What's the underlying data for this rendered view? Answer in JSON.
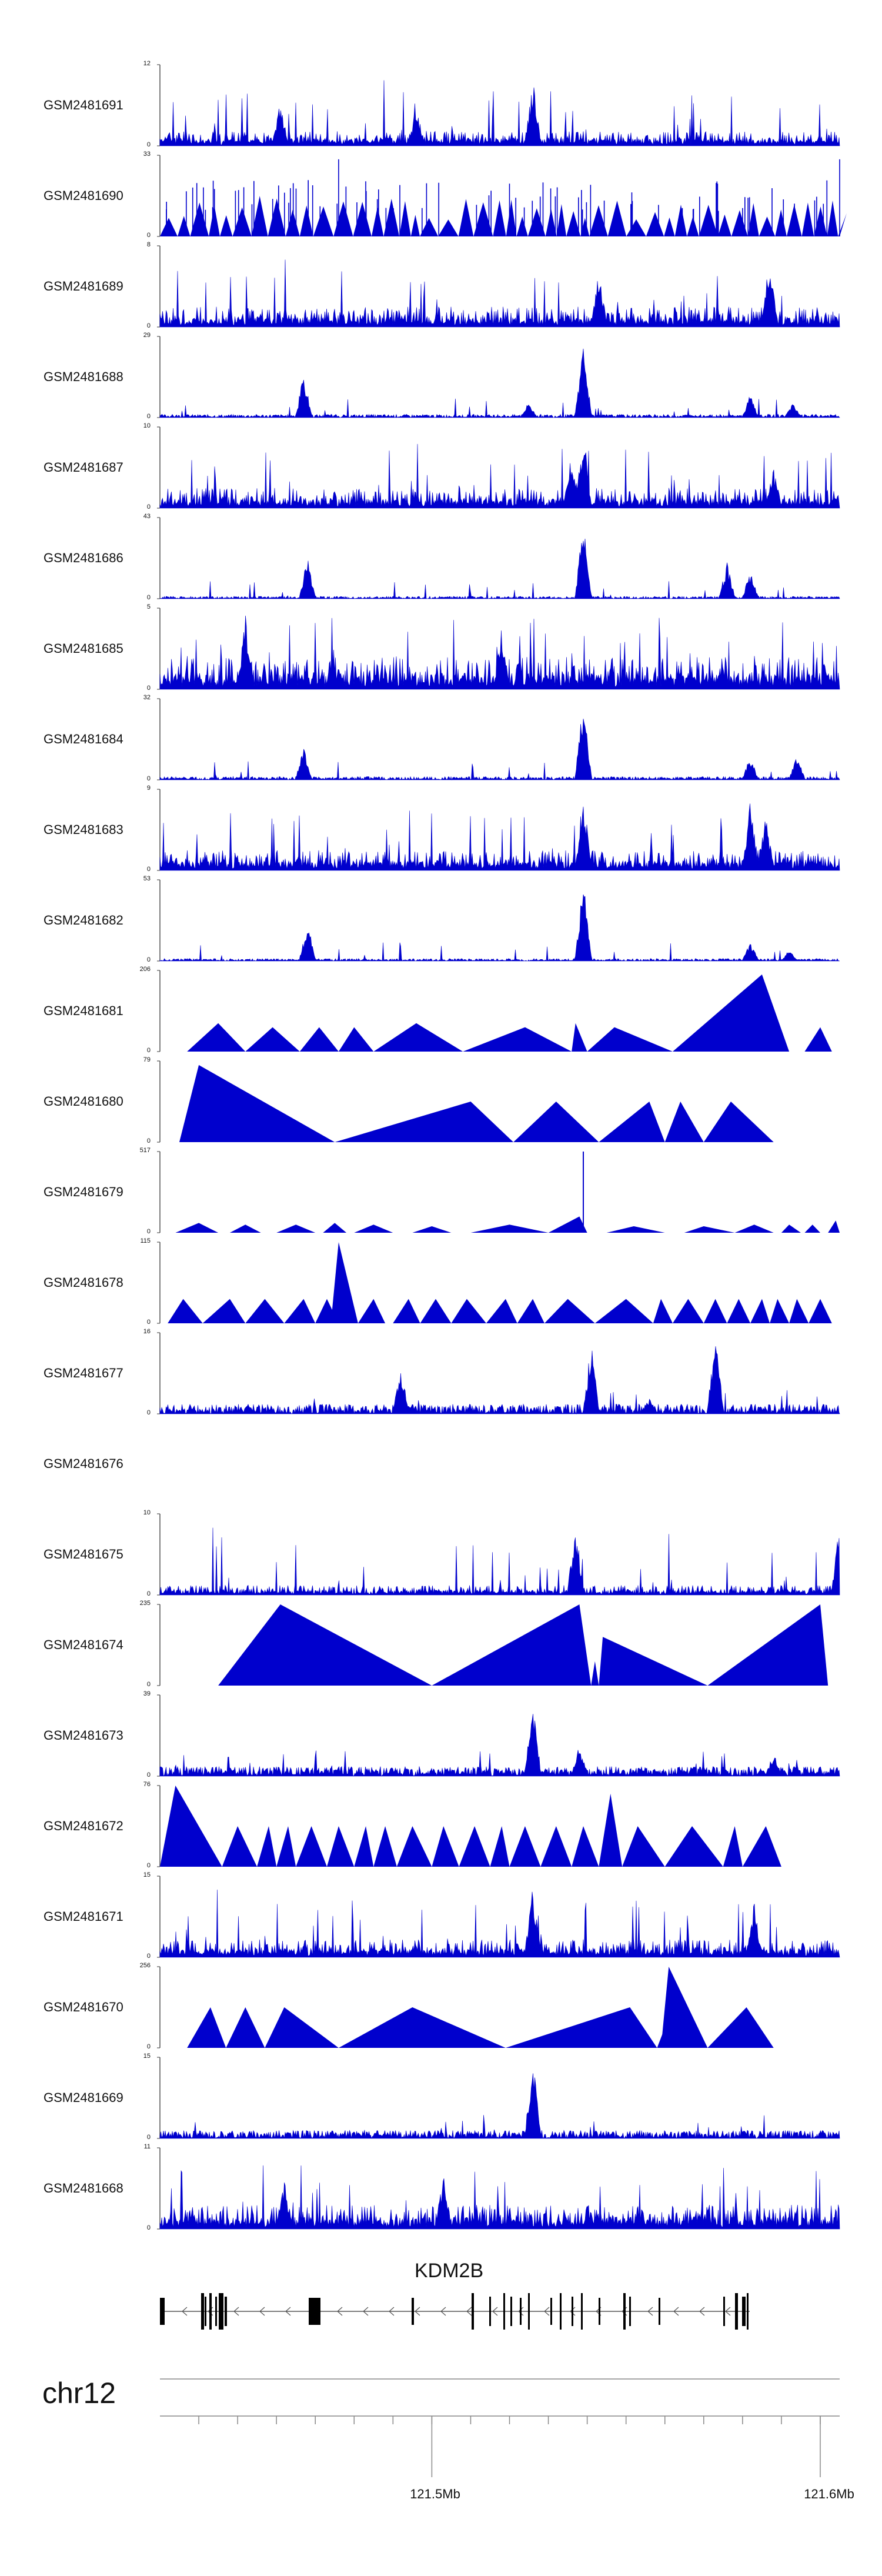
{
  "chart_data": {
    "type": "area",
    "title": "",
    "chromosome": "chr12",
    "gene": "KDM2B",
    "x_axis": {
      "ticks": [
        121.5,
        121.6
      ],
      "tick_labels": [
        "121.5Mb",
        "121.6Mb"
      ],
      "range": [
        121.43,
        121.605
      ]
    },
    "tracks": [
      {
        "name": "GSM2481691",
        "ymax": 12,
        "style": "noise",
        "base": 0.18,
        "peaks": [
          [
            121.461,
            0.55
          ],
          [
            121.496,
            0.5
          ],
          [
            121.526,
            0.85
          ]
        ],
        "seed": 11
      },
      {
        "name": "GSM2481690",
        "ymax": 33,
        "style": "tri-dense",
        "count": 46,
        "peaks": [
          [
            121.476,
            0.95
          ],
          [
            121.52,
            0.65
          ],
          [
            121.605,
            0.95
          ]
        ],
        "seed": 12
      },
      {
        "name": "GSM2481689",
        "ymax": 8,
        "style": "noise",
        "base": 0.25,
        "peaks": [
          [
            121.587,
            1.0
          ],
          [
            121.543,
            0.7
          ]
        ],
        "seed": 13
      },
      {
        "name": "GSM2481688",
        "ymax": 29,
        "style": "sparse",
        "base": 0.04,
        "peaks": [
          [
            121.467,
            0.55
          ],
          [
            121.539,
            0.95
          ],
          [
            121.539,
            0.85
          ],
          [
            121.525,
            0.2
          ],
          [
            121.582,
            0.3
          ],
          [
            121.593,
            0.2
          ]
        ],
        "seed": 14
      },
      {
        "name": "GSM2481687",
        "ymax": 10,
        "style": "noise",
        "base": 0.25,
        "peaks": [
          [
            121.539,
            1.0
          ],
          [
            121.536,
            0.7
          ],
          [
            121.588,
            0.5
          ]
        ],
        "seed": 15
      },
      {
        "name": "GSM2481686",
        "ymax": 43,
        "style": "sparse",
        "base": 0.03,
        "peaks": [
          [
            121.468,
            0.55
          ],
          [
            121.539,
            1.0
          ],
          [
            121.539,
            0.9
          ],
          [
            121.576,
            0.45
          ],
          [
            121.582,
            0.35
          ]
        ],
        "seed": 16
      },
      {
        "name": "GSM2481685",
        "ymax": 5,
        "style": "noise",
        "base": 0.4,
        "peaks": [
          [
            121.452,
            1.0
          ],
          [
            121.518,
            0.8
          ]
        ],
        "seed": 17
      },
      {
        "name": "GSM2481684",
        "ymax": 32,
        "style": "sparse",
        "base": 0.04,
        "peaks": [
          [
            121.467,
            0.4
          ],
          [
            121.539,
            1.0
          ],
          [
            121.539,
            0.8
          ],
          [
            121.582,
            0.3
          ],
          [
            121.594,
            0.3
          ]
        ],
        "seed": 18
      },
      {
        "name": "GSM2481683",
        "ymax": 9,
        "style": "noise",
        "base": 0.25,
        "peaks": [
          [
            121.539,
            1.0
          ],
          [
            121.582,
            0.95
          ],
          [
            121.586,
            0.7
          ]
        ],
        "seed": 19
      },
      {
        "name": "GSM2481682",
        "ymax": 53,
        "style": "sparse",
        "base": 0.03,
        "peaks": [
          [
            121.468,
            0.5
          ],
          [
            121.539,
            1.0
          ],
          [
            121.539,
            0.9
          ],
          [
            121.582,
            0.25
          ],
          [
            121.592,
            0.15
          ]
        ],
        "seed": 20
      },
      {
        "name": "GSM2481681",
        "ymax": 206,
        "style": "tri",
        "tris": [
          [
            121.437,
            121.445,
            121.452,
            0.35
          ],
          [
            121.452,
            121.459,
            121.466,
            0.3
          ],
          [
            121.466,
            121.471,
            121.476,
            0.3
          ],
          [
            121.476,
            121.48,
            121.485,
            0.3
          ],
          [
            121.485,
            121.496,
            121.508,
            0.35
          ],
          [
            121.508,
            121.524,
            121.536,
            0.3
          ],
          [
            121.536,
            121.537,
            121.54,
            0.35
          ],
          [
            121.54,
            121.547,
            121.562,
            0.3
          ],
          [
            121.562,
            121.585,
            121.592,
            0.95
          ],
          [
            121.596,
            121.6,
            121.603,
            0.3
          ]
        ],
        "seed": 21
      },
      {
        "name": "GSM2481680",
        "ymax": 79,
        "style": "tri",
        "tris": [
          [
            121.435,
            121.44,
            121.475,
            0.95
          ],
          [
            121.475,
            121.51,
            121.521,
            0.5
          ],
          [
            121.521,
            121.532,
            121.543,
            0.5
          ],
          [
            121.543,
            121.556,
            121.56,
            0.5
          ],
          [
            121.56,
            121.564,
            121.57,
            0.5
          ],
          [
            121.57,
            121.577,
            121.588,
            0.5
          ]
        ],
        "seed": 22
      },
      {
        "name": "GSM2481679",
        "ymax": 517,
        "style": "tri",
        "tris": [
          [
            121.434,
            121.44,
            121.445,
            0.12
          ],
          [
            121.448,
            121.452,
            121.456,
            0.1
          ],
          [
            121.46,
            121.465,
            121.47,
            0.1
          ],
          [
            121.472,
            121.475,
            121.478,
            0.12
          ],
          [
            121.48,
            121.485,
            121.49,
            0.1
          ],
          [
            121.495,
            121.5,
            121.505,
            0.08
          ],
          [
            121.51,
            121.52,
            121.53,
            0.1
          ],
          [
            121.53,
            121.538,
            121.54,
            0.2
          ],
          [
            121.545,
            121.552,
            121.56,
            0.08
          ],
          [
            121.565,
            121.57,
            121.578,
            0.08
          ],
          [
            121.578,
            121.583,
            121.588,
            0.1
          ],
          [
            121.59,
            121.592,
            121.595,
            0.1
          ],
          [
            121.596,
            121.598,
            121.6,
            0.1
          ],
          [
            121.602,
            121.604,
            121.605,
            0.15
          ]
        ],
        "seed": 23,
        "peaks": [
          [
            121.539,
            1.0
          ]
        ]
      },
      {
        "name": "GSM2481678",
        "ymax": 115,
        "style": "tri",
        "tris": [
          [
            121.432,
            121.436,
            121.441,
            0.3
          ],
          [
            121.441,
            121.448,
            121.452,
            0.3
          ],
          [
            121.452,
            121.457,
            121.462,
            0.3
          ],
          [
            121.462,
            121.467,
            121.47,
            0.3
          ],
          [
            121.47,
            121.473,
            121.476,
            0.3
          ],
          [
            121.474,
            121.476,
            121.481,
            1.0
          ],
          [
            121.481,
            121.485,
            121.488,
            0.3
          ],
          [
            121.49,
            121.494,
            121.497,
            0.3
          ],
          [
            121.497,
            121.501,
            121.505,
            0.3
          ],
          [
            121.505,
            121.509,
            121.514,
            0.3
          ],
          [
            121.514,
            121.519,
            121.522,
            0.3
          ],
          [
            121.522,
            121.526,
            121.529,
            0.3
          ],
          [
            121.529,
            121.535,
            121.542,
            0.3
          ],
          [
            121.542,
            121.55,
            121.557,
            0.3
          ],
          [
            121.557,
            121.559,
            121.562,
            0.3
          ],
          [
            121.562,
            121.566,
            121.57,
            0.3
          ],
          [
            121.57,
            121.573,
            121.576,
            0.3
          ],
          [
            121.576,
            121.579,
            121.582,
            0.3
          ],
          [
            121.582,
            121.585,
            121.587,
            0.3
          ],
          [
            121.587,
            121.589,
            121.592,
            0.3
          ],
          [
            121.592,
            121.594,
            121.597,
            0.3
          ],
          [
            121.597,
            121.6,
            121.603,
            0.3
          ]
        ],
        "seed": 24
      },
      {
        "name": "GSM2481677",
        "ymax": 16,
        "style": "sparse",
        "base": 0.12,
        "peaks": [
          [
            121.492,
            0.65
          ],
          [
            121.541,
            0.9
          ],
          [
            121.573,
            1.0
          ],
          [
            121.556,
            0.2
          ]
        ],
        "seed": 25
      },
      {
        "name": "GSM2481676",
        "ymax": null,
        "style": "empty",
        "seed": 26
      },
      {
        "name": "GSM2481675",
        "ymax": 10,
        "style": "noise",
        "base": 0.12,
        "peaks": [
          [
            121.537,
            0.95
          ],
          [
            121.605,
            1.0
          ]
        ],
        "seed": 27
      },
      {
        "name": "GSM2481674",
        "ymax": 235,
        "style": "tri",
        "tris": [
          [
            121.445,
            121.461,
            121.5,
            1.0
          ],
          [
            121.5,
            121.538,
            121.541,
            1.0
          ],
          [
            121.541,
            121.542,
            121.543,
            0.3
          ],
          [
            121.543,
            121.544,
            121.571,
            0.6
          ],
          [
            121.571,
            121.6,
            121.602,
            1.0
          ]
        ],
        "seed": 28
      },
      {
        "name": "GSM2481673",
        "ymax": 39,
        "style": "sparse",
        "base": 0.12,
        "peaks": [
          [
            121.526,
            1.0
          ],
          [
            121.538,
            0.4
          ],
          [
            121.588,
            0.3
          ]
        ],
        "seed": 29
      },
      {
        "name": "GSM2481672",
        "ymax": 76,
        "style": "tri",
        "tris": [
          [
            121.43,
            121.434,
            121.446,
            1.0
          ],
          [
            121.446,
            121.45,
            121.455,
            0.5
          ],
          [
            121.455,
            121.458,
            121.46,
            0.5
          ],
          [
            121.46,
            121.463,
            121.465,
            0.5
          ],
          [
            121.465,
            121.469,
            121.473,
            0.5
          ],
          [
            121.473,
            121.476,
            121.48,
            0.5
          ],
          [
            121.48,
            121.483,
            121.485,
            0.5
          ],
          [
            121.485,
            121.488,
            121.491,
            0.5
          ],
          [
            121.491,
            121.495,
            121.5,
            0.5
          ],
          [
            121.5,
            121.503,
            121.507,
            0.5
          ],
          [
            121.507,
            121.511,
            121.515,
            0.5
          ],
          [
            121.515,
            121.518,
            121.52,
            0.5
          ],
          [
            121.52,
            121.524,
            121.528,
            0.5
          ],
          [
            121.528,
            121.532,
            121.536,
            0.5
          ],
          [
            121.536,
            121.539,
            121.543,
            0.5
          ],
          [
            121.543,
            121.546,
            121.549,
            0.9
          ],
          [
            121.549,
            121.553,
            121.56,
            0.5
          ],
          [
            121.56,
            121.567,
            121.575,
            0.5
          ],
          [
            121.575,
            121.578,
            121.58,
            0.5
          ],
          [
            121.58,
            121.586,
            121.59,
            0.5
          ]
        ],
        "seed": 30
      },
      {
        "name": "GSM2481671",
        "ymax": 15,
        "style": "noise",
        "base": 0.22,
        "peaks": [
          [
            121.526,
            0.95
          ],
          [
            121.583,
            0.7
          ]
        ],
        "seed": 31
      },
      {
        "name": "GSM2481670",
        "ymax": 256,
        "style": "tri",
        "tris": [
          [
            121.437,
            121.443,
            121.447,
            0.5
          ],
          [
            121.447,
            121.452,
            121.457,
            0.5
          ],
          [
            121.457,
            121.462,
            121.476,
            0.5
          ],
          [
            121.476,
            121.495,
            121.519,
            0.5
          ],
          [
            121.519,
            121.551,
            121.558,
            0.5
          ],
          [
            121.558,
            121.562,
            121.563,
            0.5
          ],
          [
            121.559,
            121.561,
            121.571,
            1.0
          ],
          [
            121.571,
            121.581,
            121.588,
            0.5
          ]
        ],
        "seed": 32
      },
      {
        "name": "GSM2481669",
        "ymax": 15,
        "style": "sparse",
        "base": 0.1,
        "peaks": [
          [
            121.526,
            1.0
          ]
        ],
        "seed": 33
      },
      {
        "name": "GSM2481668",
        "ymax": 11,
        "style": "noise",
        "base": 0.3,
        "peaks": [
          [
            121.462,
            0.6
          ],
          [
            121.503,
            0.7
          ]
        ],
        "seed": 34
      }
    ]
  }
}
